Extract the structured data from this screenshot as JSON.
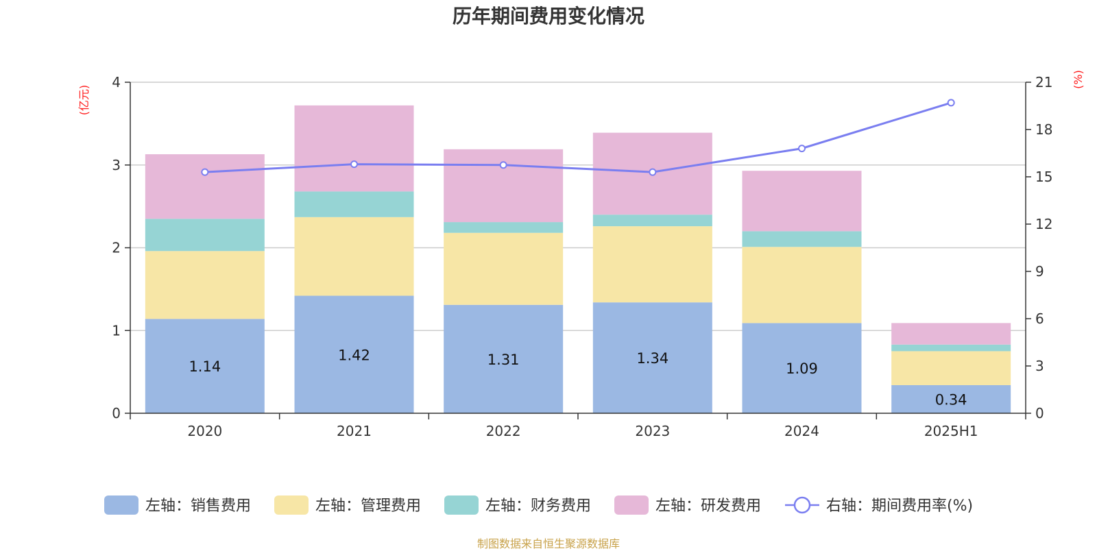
{
  "chart_data": {
    "type": "bar",
    "title": "历年期间费用变化情况",
    "categories": [
      "2020",
      "2021",
      "2022",
      "2023",
      "2024",
      "2025H1"
    ],
    "left_axis": {
      "unit": "(亿元)",
      "ylim": [
        0,
        4
      ],
      "ticks": [
        "0",
        "1",
        "2",
        "3",
        "4"
      ]
    },
    "right_axis": {
      "unit": "(%)",
      "ylim": [
        0,
        21
      ],
      "ticks": [
        "0",
        "3",
        "6",
        "9",
        "12",
        "15",
        "18",
        "21"
      ]
    },
    "series": [
      {
        "name": "左轴：销售费用",
        "kind": "bar",
        "axis": "left",
        "color": "#9bb8e3",
        "values": [
          1.14,
          1.42,
          1.31,
          1.34,
          1.09,
          0.34
        ],
        "show_labels": true
      },
      {
        "name": "左轴：管理费用",
        "kind": "bar",
        "axis": "left",
        "color": "#f7e6a6",
        "values": [
          0.82,
          0.95,
          0.87,
          0.92,
          0.92,
          0.41
        ],
        "show_labels": false
      },
      {
        "name": "左轴：财务费用",
        "kind": "bar",
        "axis": "left",
        "color": "#96d4d4",
        "values": [
          0.39,
          0.31,
          0.13,
          0.14,
          0.19,
          0.08
        ],
        "show_labels": false
      },
      {
        "name": "左轴：研发费用",
        "kind": "bar",
        "axis": "left",
        "color": "#e6b8d8",
        "values": [
          0.78,
          1.04,
          0.88,
          0.99,
          0.73,
          0.26
        ],
        "show_labels": false
      },
      {
        "name": "右轴：期间费用率(%)",
        "kind": "line",
        "axis": "right",
        "color": "#7a7ef0",
        "values": [
          15.3,
          15.8,
          15.75,
          15.3,
          16.8,
          19.7
        ],
        "show_labels": false
      }
    ],
    "grid": true,
    "legend_position": "bottom"
  },
  "source_note": "制图数据来自恒生聚源数据库"
}
